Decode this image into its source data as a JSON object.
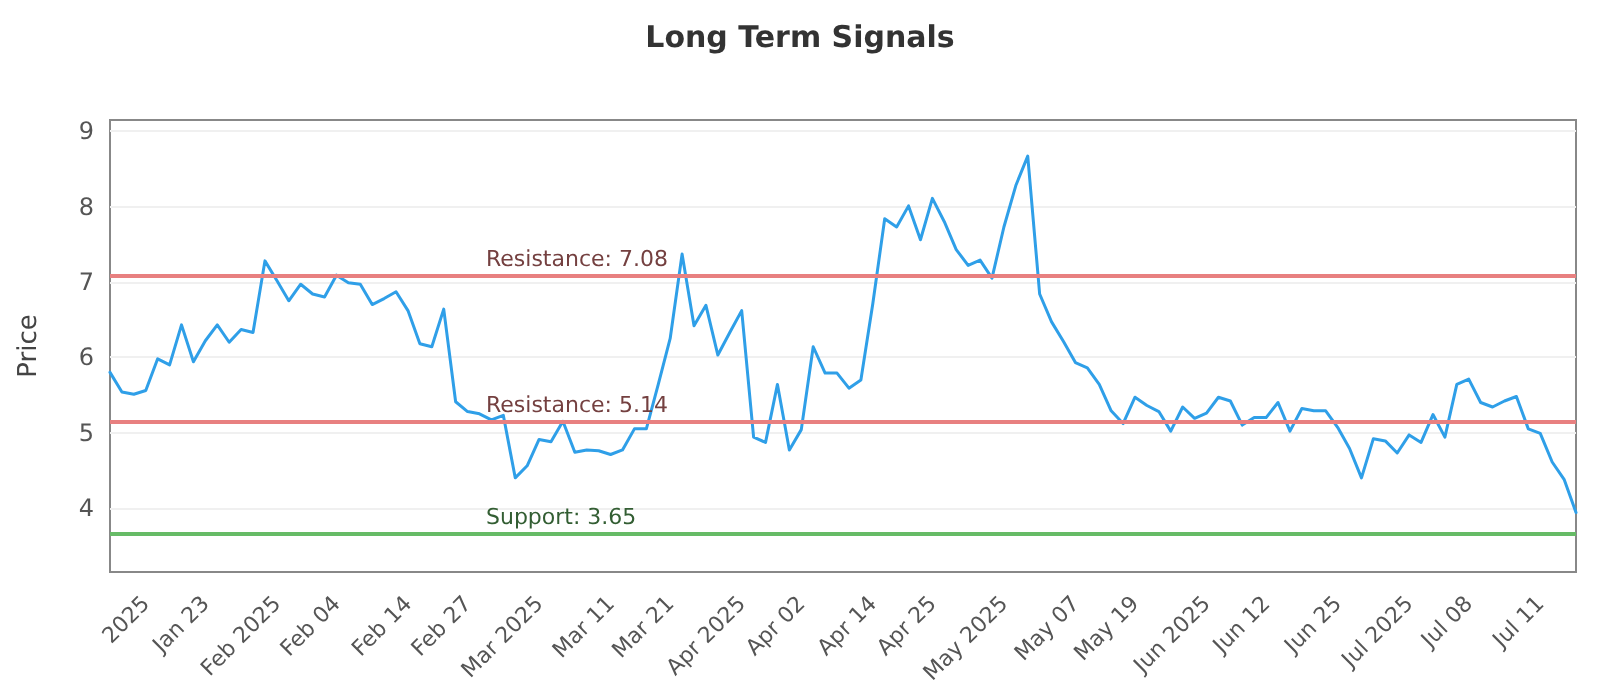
{
  "chart_data": {
    "type": "line",
    "title": "Long Term Signals",
    "ylabel": "Price",
    "categories": [
      null,
      null,
      null,
      "2025",
      null,
      null,
      null,
      null,
      "Jan 23",
      null,
      null,
      null,
      null,
      null,
      "Feb 2025",
      null,
      null,
      null,
      null,
      "Feb 04",
      null,
      null,
      null,
      null,
      null,
      "Feb 14",
      null,
      null,
      null,
      null,
      "Feb 27",
      null,
      null,
      null,
      null,
      null,
      "Mar 2025",
      null,
      null,
      null,
      null,
      null,
      "Mar 11",
      null,
      null,
      null,
      null,
      "Mar 21",
      null,
      null,
      null,
      null,
      null,
      "Apr 2025",
      null,
      null,
      null,
      null,
      "Apr 02",
      null,
      null,
      null,
      null,
      null,
      "Apr 14",
      null,
      null,
      null,
      null,
      "Apr 25",
      null,
      null,
      null,
      null,
      null,
      "May 2025",
      null,
      null,
      null,
      null,
      null,
      "May 07",
      null,
      null,
      null,
      null,
      "May 19",
      null,
      null,
      null,
      null,
      null,
      "Jun 2025",
      null,
      null,
      null,
      null,
      "Jun 12",
      null,
      null,
      null,
      null,
      null,
      "Jun 25",
      null,
      null,
      null,
      null,
      null,
      "Jul 2025",
      null,
      null,
      null,
      null,
      "Jul 08",
      null,
      null,
      null,
      null,
      null,
      "Jul 11",
      null,
      null,
      null
    ],
    "series": [
      {
        "color": "#2f9fe8",
        "values": [
          5.8,
          5.54,
          5.51,
          5.56,
          5.98,
          5.9,
          6.43,
          5.94,
          6.22,
          6.43,
          6.2,
          6.37,
          6.33,
          7.28,
          7.02,
          6.75,
          6.97,
          6.84,
          6.8,
          7.09,
          6.99,
          6.97,
          6.7,
          6.78,
          6.87,
          6.62,
          6.18,
          6.14,
          6.64,
          5.41,
          5.28,
          5.25,
          5.17,
          5.23,
          4.4,
          4.56,
          4.91,
          4.88,
          5.15,
          4.74,
          4.77,
          4.76,
          4.71,
          4.77,
          5.05,
          5.05,
          5.64,
          6.25,
          7.37,
          6.42,
          6.69,
          6.03,
          6.33,
          6.62,
          4.94,
          4.87,
          5.64,
          4.77,
          5.04,
          6.14,
          5.79,
          5.79,
          5.59,
          5.7,
          6.71,
          7.84,
          7.73,
          8.01,
          7.56,
          8.11,
          7.8,
          7.43,
          7.22,
          7.29,
          7.05,
          7.73,
          8.28,
          8.67,
          6.84,
          6.47,
          6.21,
          5.93,
          5.86,
          5.64,
          5.29,
          5.12,
          5.47,
          5.36,
          5.28,
          5.02,
          5.34,
          5.19,
          5.26,
          5.47,
          5.42,
          5.1,
          5.2,
          5.2,
          5.4,
          5.02,
          5.32,
          5.29,
          5.29,
          5.07,
          4.79,
          4.4,
          4.92,
          4.89,
          4.73,
          4.97,
          4.87,
          5.24,
          4.94,
          5.64,
          5.71,
          5.4,
          5.34,
          5.42,
          5.48,
          5.05,
          4.99,
          4.61,
          4.38,
          3.94
        ]
      }
    ],
    "ylim": [
      3.15,
      9.15
    ],
    "yticks": [
      4,
      5,
      6,
      7,
      8,
      9
    ],
    "grid": "y",
    "marker": "none",
    "line_style": "solid",
    "ref_lines": [
      {
        "axis": "y",
        "value": 7.08,
        "label": "Resistance: 7.08",
        "color": "#e88080"
      },
      {
        "axis": "y",
        "value": 5.14,
        "label": "Resistance: 5.14",
        "color": "#e88080"
      },
      {
        "axis": "y",
        "value": 3.65,
        "label": "Support: 3.65",
        "color": "#66bb66"
      }
    ]
  }
}
